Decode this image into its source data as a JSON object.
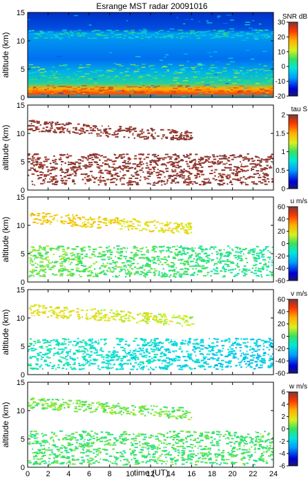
{
  "chart_data": {
    "title": "Esrange MST radar 20091016",
    "xlabel": "time (UT)",
    "xlim": [
      0,
      24
    ],
    "xticks": [
      0,
      2,
      4,
      6,
      8,
      10,
      12,
      14,
      16,
      18,
      20,
      22,
      24
    ],
    "panels": [
      {
        "type": "heatmap",
        "quantity": "SNR",
        "ylabel": "altitude (km)",
        "ylim": [
          0,
          15
        ],
        "yticks": [
          0,
          5,
          10,
          15
        ],
        "colorbar_label": "SNR dB",
        "clim": [
          -20,
          30
        ],
        "cticks": [
          -20,
          -10,
          0,
          10,
          20,
          30
        ],
        "colormap": "jet",
        "coverage": "full",
        "layers": [
          {
            "t0": 0,
            "t1": 24,
            "alt0": 0,
            "alt1": 15,
            "value": -5
          },
          {
            "t0": 0,
            "t1": 24,
            "alt0": 2.5,
            "alt1": 6,
            "value": 5
          },
          {
            "t0": 0,
            "t1": 24,
            "alt0": 0.8,
            "alt1": 2.2,
            "value": 22
          },
          {
            "t0": 0,
            "t1": 24,
            "alt0": 10.5,
            "alt1": 12,
            "value": 0
          }
        ]
      },
      {
        "type": "heatmap",
        "quantity": "tau",
        "ylabel": "altitude (km)",
        "ylim": [
          0,
          15
        ],
        "yticks": [
          0,
          5,
          10,
          15
        ],
        "colorbar_label": "tau S",
        "clim": [
          0,
          2
        ],
        "cticks": [
          0,
          0.5,
          1,
          1.5,
          2
        ],
        "colormap": "jet",
        "coverage": "layers",
        "layers": [
          {
            "t0": 0,
            "t1": 24,
            "alt0": 1,
            "alt1": 6.5,
            "value": 2
          },
          {
            "t0": 0,
            "t1": 16,
            "alt0": 10.5,
            "alt1": 12.5,
            "value": 2
          }
        ]
      },
      {
        "type": "heatmap",
        "quantity": "u",
        "ylabel": "altitude (km)",
        "ylim": [
          0,
          15
        ],
        "yticks": [
          0,
          5,
          10,
          15
        ],
        "colorbar_label": "u m/s",
        "clim": [
          -60,
          60
        ],
        "cticks": [
          -60,
          -40,
          -20,
          0,
          20,
          40,
          60
        ],
        "colormap": "jet",
        "coverage": "layers",
        "layers": [
          {
            "t0": 0,
            "t1": 24,
            "alt0": 1,
            "alt1": 6.5,
            "value": 5
          },
          {
            "t0": 0,
            "t1": 16,
            "alt0": 10.5,
            "alt1": 12.5,
            "value": 25
          }
        ]
      },
      {
        "type": "heatmap",
        "quantity": "v",
        "ylabel": "altitude (km)",
        "ylim": [
          0,
          15
        ],
        "yticks": [
          0,
          5,
          10,
          15
        ],
        "colorbar_label": "v m/s",
        "clim": [
          -60,
          60
        ],
        "cticks": [
          -60,
          -40,
          -20,
          0,
          20,
          40,
          60
        ],
        "colormap": "jet",
        "coverage": "layers",
        "layers": [
          {
            "t0": 0,
            "t1": 24,
            "alt0": 1,
            "alt1": 6.5,
            "value": -10
          },
          {
            "t0": 0,
            "t1": 16,
            "alt0": 10.5,
            "alt1": 12.5,
            "value": 20
          }
        ]
      },
      {
        "type": "heatmap",
        "quantity": "w",
        "ylabel": "altitude (km)",
        "ylim": [
          0,
          15
        ],
        "yticks": [
          0,
          5,
          10,
          15
        ],
        "colorbar_label": "w m/s",
        "clim": [
          -6,
          6
        ],
        "cticks": [
          -6,
          -4,
          -2,
          0,
          2,
          4,
          6
        ],
        "colormap": "jet",
        "coverage": "layers",
        "layers": [
          {
            "t0": 0,
            "t1": 24,
            "alt0": 0.5,
            "alt1": 6.5,
            "value": 0
          },
          {
            "t0": 0,
            "t1": 16,
            "alt0": 10.5,
            "alt1": 12.5,
            "value": 0.5
          }
        ]
      }
    ]
  }
}
